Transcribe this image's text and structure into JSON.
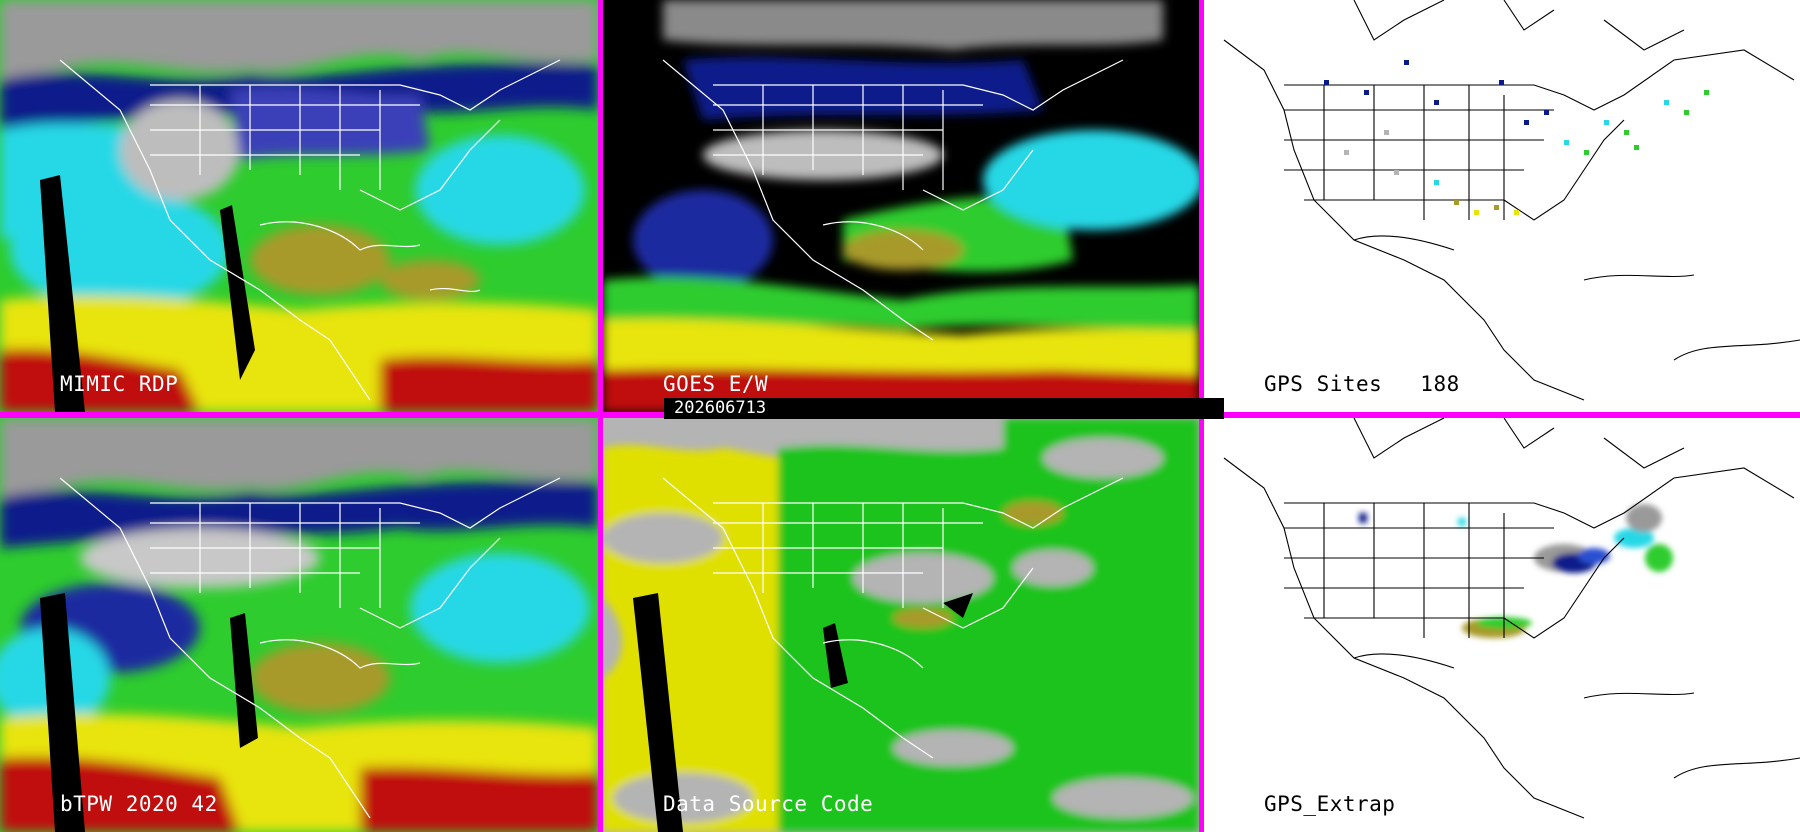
{
  "panels": {
    "mimic": {
      "label": "MIMIC RDP"
    },
    "goes": {
      "label": "GOES E/W"
    },
    "gps_sites": {
      "label": "GPS Sites",
      "count": "188"
    },
    "btpw": {
      "label": "bTPW 2020 42"
    },
    "data_source": {
      "label": "Data Source Code"
    },
    "gps_extrap": {
      "label": "GPS_Extrap"
    }
  },
  "timestamp": "202606713",
  "colors": {
    "divider": "#ff00ff",
    "gray_dry": "#9a9a9a",
    "navy": "#0a1a8a",
    "blue": "#2a4fd0",
    "cyan": "#26d8e6",
    "green": "#2ecc2e",
    "olive": "#a89a2a",
    "yellow": "#e8e40a",
    "red": "#c01010",
    "source_gray": "#b4b4b4",
    "source_yellow": "#e0e000",
    "source_green": "#1fc31f"
  }
}
